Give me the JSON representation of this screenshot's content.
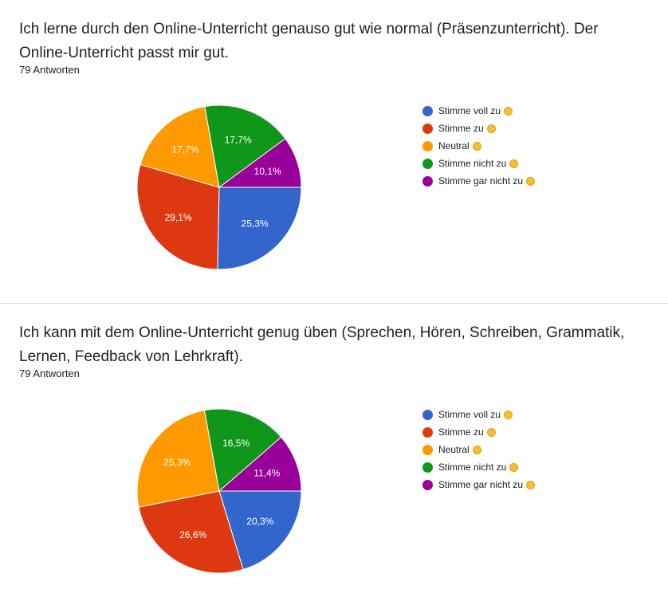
{
  "cards": [
    {
      "title": "Ich lerne durch den Online-Unterricht genauso gut wie normal (Präsenzunterricht). Der Online-Unterricht passt mir gut.",
      "count": "79 Antworten"
    },
    {
      "title": "Ich kann mit dem Online-Unterricht genug üben (Sprechen, Hören, Schreiben, Grammatik, Lernen, Feedback von Lehrkraft).",
      "count": "79 Antworten"
    }
  ],
  "legend": [
    {
      "label": "Stimme voll zu",
      "color": "#3366cc",
      "icon": "grinning-face-icon"
    },
    {
      "label": "Stimme zu",
      "color": "#dc3912",
      "icon": "slightly-smiling-face-icon"
    },
    {
      "label": "Neutral",
      "color": "#ff9900",
      "icon": "neutral-face-icon"
    },
    {
      "label": "Stimme nicht zu",
      "color": "#109618",
      "icon": "slightly-frowning-face-icon"
    },
    {
      "label": "Stimme gar nicht zu",
      "color": "#990099",
      "icon": "pensive-face-icon"
    }
  ],
  "chart_data": [
    {
      "type": "pie",
      "categories": [
        "Stimme voll zu",
        "Stimme zu",
        "Neutral",
        "Stimme nicht zu",
        "Stimme gar nicht zu"
      ],
      "values": [
        25.3,
        29.1,
        17.7,
        17.7,
        10.1
      ],
      "labels": [
        "25,3%",
        "29,1%",
        "17,7%",
        "17,7%",
        "10,1%"
      ],
      "colors": [
        "#3366cc",
        "#dc3912",
        "#ff9900",
        "#109618",
        "#990099"
      ],
      "legend_position": "right"
    },
    {
      "type": "pie",
      "categories": [
        "Stimme voll zu",
        "Stimme zu",
        "Neutral",
        "Stimme nicht zu",
        "Stimme gar nicht zu"
      ],
      "values": [
        20.3,
        26.6,
        25.3,
        16.5,
        11.4
      ],
      "labels": [
        "20,3%",
        "26,6%",
        "25,3%",
        "16,5%",
        "11,4%"
      ],
      "colors": [
        "#3366cc",
        "#dc3912",
        "#ff9900",
        "#109618",
        "#990099"
      ],
      "legend_position": "right"
    }
  ]
}
